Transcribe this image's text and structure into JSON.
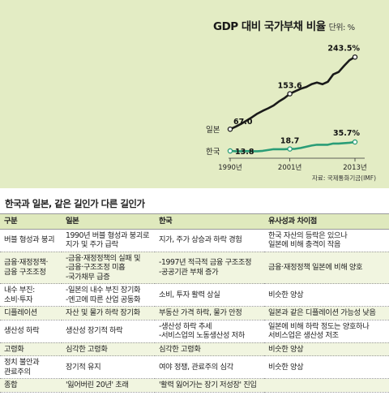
{
  "chart_data": {
    "type": "line",
    "title": "GDP 대비 국가부채 비율",
    "unit": "단위: %",
    "x": [
      1990,
      1991,
      1992,
      1993,
      1994,
      1995,
      1996,
      1997,
      1998,
      1999,
      2000,
      2001,
      2002,
      2003,
      2004,
      2005,
      2006,
      2007,
      2008,
      2009,
      2010,
      2011,
      2012,
      2013
    ],
    "xticks": [
      "1990년",
      "2001년",
      "2013년"
    ],
    "series": [
      {
        "name": "일본",
        "color": "#1a1a1a",
        "values": [
          67.0,
          73,
          80,
          88,
          96,
          105,
          112,
          118,
          125,
          135,
          143,
          153.6,
          160,
          166,
          170,
          177,
          181,
          177,
          183,
          201,
          207,
          222,
          236,
          243.5
        ]
      },
      {
        "name": "한국",
        "color": "#2a9d77",
        "values": [
          13.8,
          13,
          13,
          13.5,
          13,
          13,
          14,
          16,
          18,
          18,
          18,
          18.7,
          19,
          21,
          24,
          27,
          29,
          29,
          29,
          32,
          32,
          33,
          34,
          35.7
        ]
      }
    ],
    "labels": [
      {
        "series": "일본",
        "x": 1990,
        "text": "67.0"
      },
      {
        "series": "일본",
        "x": 2001,
        "text": "153.6"
      },
      {
        "series": "일본",
        "x": 2013,
        "text": "243.5%"
      },
      {
        "series": "한국",
        "x": 1990,
        "text": "13.8"
      },
      {
        "series": "한국",
        "x": 2001,
        "text": "18.7"
      },
      {
        "series": "한국",
        "x": 2013,
        "text": "35.7%"
      }
    ],
    "source": "자료: 국제통화기금(IMF)",
    "ylim": [
      0,
      260
    ]
  },
  "table": {
    "title": "한국과 일본, 같은 길인가 다른 길인가",
    "headers": [
      "구분",
      "일본",
      "한국",
      "유사성과 차이점"
    ],
    "rows": [
      [
        "버블 형성과 붕괴",
        "1990년 버블 형성과 붕괴로\n지가 및 주가 급락",
        "지가, 주가 상승과 하락 경험",
        "한국 자산의 등락은 있으나\n일본에 비해 충격이 작음"
      ],
      [
        "금융·재정정책·\n금융 구조조정",
        "-금융·재정정책의 실패 및\n-금융·구조조정 미흡\n-국가채무 급증",
        "-1997년 적극적 금융 구조조정\n-공공기관 부채 증가",
        "금융·재정정책 일본에 비해 양호"
      ],
      [
        "내수 부진:\n소비·투자",
        "-일본의 내수 부진 장기화\n-엔고에 따른 산업 공동화",
        "소비, 투자 활력 상실",
        "비슷한 양상"
      ],
      [
        "디플레이션",
        "자산 및 물가 하락 장기화",
        "부동산 가격 하락, 물가 안정",
        "일본과 같은 디플레이션 가능성 낮음"
      ],
      [
        "생산성 하락",
        "생산성 장기적 하락",
        "-생산성 하락 추세\n-서비스업의 노동생산성 저하",
        "일본에 비해 하락 정도는 양호하나\n서비스업은 생산성 저조"
      ],
      [
        "고령화",
        "심각한 고령화",
        "심각한 고령화",
        "비슷한 양상"
      ],
      [
        "정치 불안과\n관료주의",
        "장기적 유지",
        "여야 정쟁, 관료주의 심각",
        "비슷한 양상"
      ],
      [
        "종합",
        "'잃어버린 20년' 초래",
        "'활력 잃어가는 장기 저성장' 진입",
        ""
      ]
    ]
  }
}
